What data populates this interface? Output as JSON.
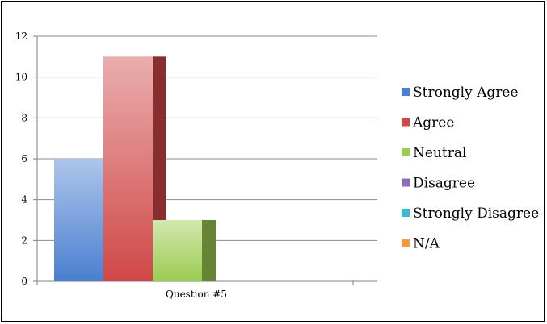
{
  "chart_data": {
    "type": "bar",
    "style": "3d",
    "categories": [
      "Question #5"
    ],
    "series": [
      {
        "name": "Strongly Agree",
        "values": [
          6
        ],
        "color": "#4a7fd0"
      },
      {
        "name": "Agree",
        "values": [
          11
        ],
        "color": "#d04848"
      },
      {
        "name": "Neutral",
        "values": [
          3
        ],
        "color": "#9ccc50"
      },
      {
        "name": "Disagree",
        "values": [
          0
        ],
        "color": "#8c6bb8"
      },
      {
        "name": "Strongly Disagree",
        "values": [
          0
        ],
        "color": "#3fb8d8"
      },
      {
        "name": "N/A",
        "values": [
          0
        ],
        "color": "#f29a3a"
      }
    ],
    "yticks": [
      "0",
      "2",
      "4",
      "6",
      "8",
      "10",
      "12"
    ],
    "ylim": [
      0,
      12
    ],
    "grid": true,
    "legend_position": "right",
    "title": "",
    "xlabel": "",
    "ylabel": ""
  }
}
